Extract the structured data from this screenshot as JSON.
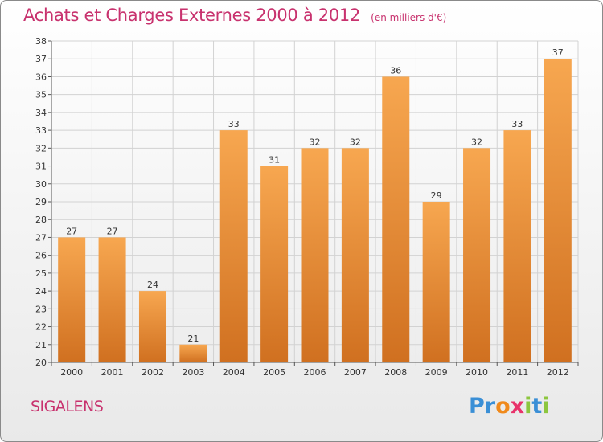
{
  "header": {
    "title": "Achats et Charges Externes 2000 à 2012",
    "unit": "(en milliers d'€)"
  },
  "commune": "SIGALENS",
  "logo": {
    "text": "Proxiti",
    "letters": [
      {
        "ch": "P",
        "color": "#3a8fd6"
      },
      {
        "ch": "r",
        "color": "#3a8fd6"
      },
      {
        "ch": "o",
        "color": "#f08a1c"
      },
      {
        "ch": "x",
        "color": "#e8336b"
      },
      {
        "ch": "i",
        "color": "#8cc63e"
      },
      {
        "ch": "t",
        "color": "#3a8fd6"
      },
      {
        "ch": "i",
        "color": "#8cc63e"
      }
    ]
  },
  "colors": {
    "title": "#c8326e",
    "bar_light": "#f7a750",
    "bar_dark": "#d07020",
    "grid": "#d2d2d2",
    "axis": "#555555"
  },
  "chart_data": {
    "type": "bar",
    "categories": [
      "2000",
      "2001",
      "2002",
      "2003",
      "2004",
      "2005",
      "2006",
      "2007",
      "2008",
      "2009",
      "2010",
      "2011",
      "2012"
    ],
    "values": [
      27,
      27,
      24,
      21,
      33,
      31,
      32,
      32,
      36,
      29,
      32,
      33,
      37
    ],
    "ylim": [
      20,
      38
    ],
    "yticks": [
      20,
      21,
      22,
      23,
      24,
      25,
      26,
      27,
      28,
      29,
      30,
      31,
      32,
      33,
      34,
      35,
      36,
      37,
      38
    ],
    "grid": true
  }
}
